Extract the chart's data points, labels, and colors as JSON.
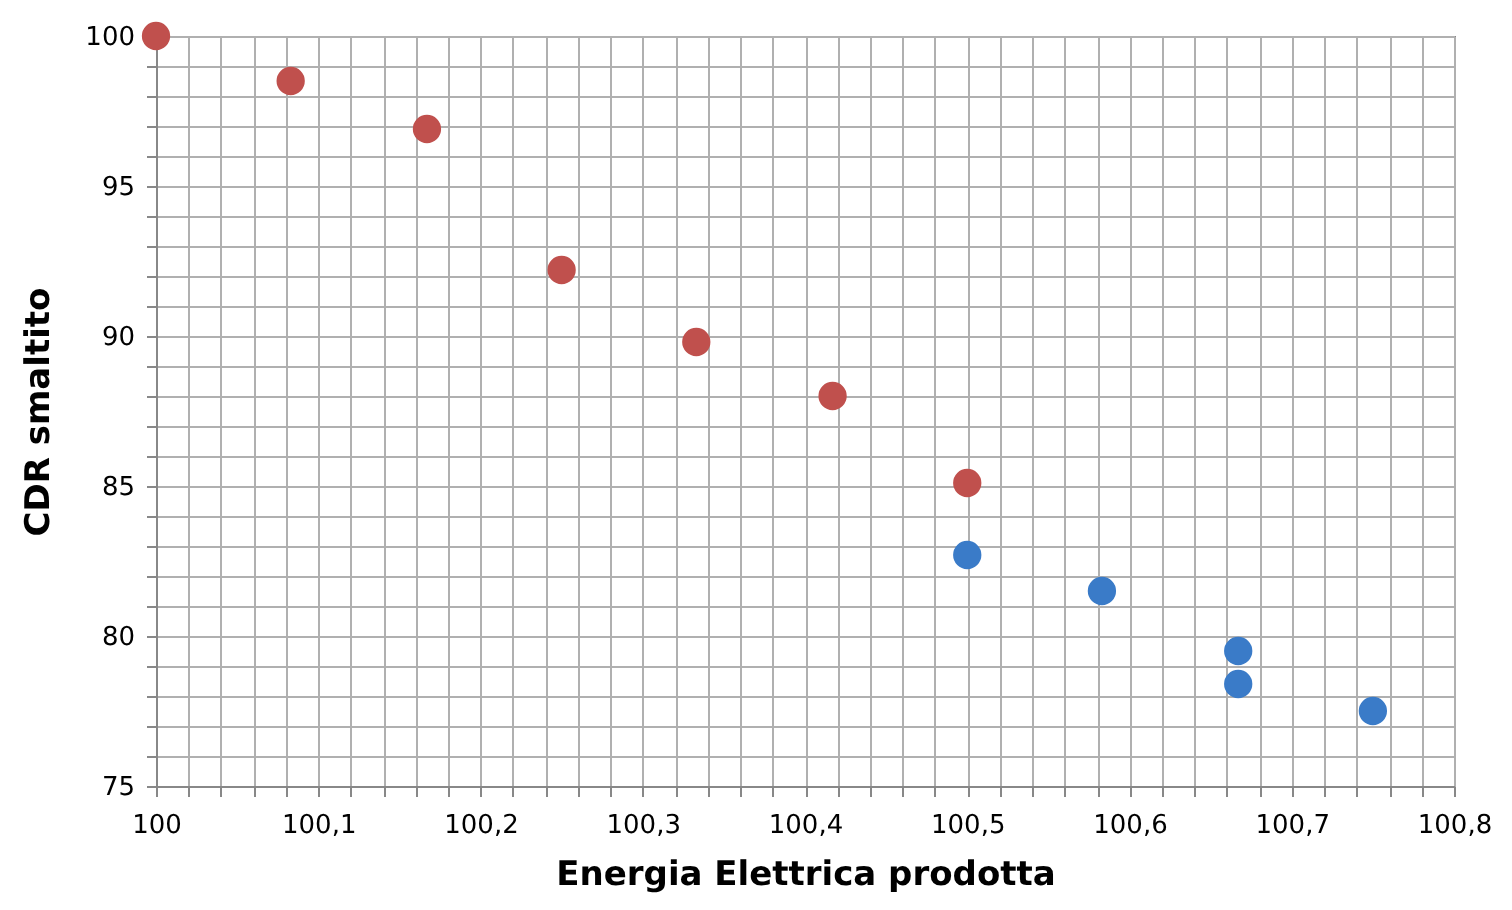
{
  "chart_data": {
    "type": "scatter",
    "xlabel": "Energia Elettrica prodotta",
    "ylabel": "CDR smaltito",
    "series": [
      {
        "color": "#c0504d",
        "x": [
          100,
          100.083,
          100.167,
          100.25,
          100.333,
          100.417,
          100.5
        ],
        "values": [
          100,
          98.5,
          96.9,
          92.2,
          89.8,
          88,
          85.1
        ]
      },
      {
        "color": "#3a7bc8",
        "x": [
          100.5,
          100.583,
          100.667,
          100.667,
          100.75
        ],
        "values": [
          82.7,
          81.5,
          79.5,
          78.4,
          77.5
        ]
      }
    ],
    "xlim": [
      100,
      100.8
    ],
    "xticks": [
      100,
      {
        "value": 100.02,
        "label": null
      },
      {
        "value": 100.04,
        "label": null
      },
      {
        "value": 100.06,
        "label": null
      },
      {
        "value": 100.08,
        "label": null
      },
      {
        "value": 100.1,
        "label": "100,1"
      },
      {
        "value": 100.12,
        "label": null
      },
      {
        "value": 100.14,
        "label": null
      },
      {
        "value": 100.16,
        "label": null
      },
      {
        "value": 100.18,
        "label": null
      },
      {
        "value": 100.2,
        "label": "100,2"
      },
      {
        "value": 100.22,
        "label": null
      },
      {
        "value": 100.24,
        "label": null
      },
      {
        "value": 100.26,
        "label": null
      },
      {
        "value": 100.28,
        "label": null
      },
      {
        "value": 100.3,
        "label": "100,3"
      },
      {
        "value": 100.32,
        "label": null
      },
      {
        "value": 100.34,
        "label": null
      },
      {
        "value": 100.36,
        "label": null
      },
      {
        "value": 100.38,
        "label": null
      },
      {
        "value": 100.4,
        "label": "100,4"
      },
      {
        "value": 100.42,
        "label": null
      },
      {
        "value": 100.44,
        "label": null
      },
      {
        "value": 100.46,
        "label": null
      },
      {
        "value": 100.48,
        "label": null
      },
      {
        "value": 100.5,
        "label": "100,5"
      },
      {
        "value": 100.52,
        "label": null
      },
      {
        "value": 100.54,
        "label": null
      },
      {
        "value": 100.56,
        "label": null
      },
      {
        "value": 100.58,
        "label": null
      },
      {
        "value": 100.6,
        "label": "100,6"
      },
      {
        "value": 100.62,
        "label": null
      },
      {
        "value": 100.64,
        "label": null
      },
      {
        "value": 100.66,
        "label": null
      },
      {
        "value": 100.68,
        "label": null
      },
      {
        "value": 100.7,
        "label": "100,7"
      },
      {
        "value": 100.72,
        "label": null
      },
      {
        "value": 100.74,
        "label": null
      },
      {
        "value": 100.76,
        "label": null
      },
      {
        "value": 100.78,
        "label": null
      },
      {
        "value": 100.8,
        "label": "100,8"
      }
    ],
    "ylim": [
      75,
      100
    ],
    "yticks": [
      75,
      {
        "value": 76,
        "label": null
      },
      {
        "value": 77,
        "label": null
      },
      {
        "value": 78,
        "label": null
      },
      {
        "value": 79,
        "label": null
      },
      80,
      {
        "value": 81,
        "label": null
      },
      {
        "value": 82,
        "label": null
      },
      {
        "value": 83,
        "label": null
      },
      {
        "value": 84,
        "label": null
      },
      85,
      {
        "value": 86,
        "label": null
      },
      {
        "value": 87,
        "label": null
      },
      {
        "value": 88,
        "label": null
      },
      {
        "value": 89,
        "label": null
      },
      90,
      {
        "value": 91,
        "label": null
      },
      {
        "value": 92,
        "label": null
      },
      {
        "value": 93,
        "label": null
      },
      {
        "value": 94,
        "label": null
      },
      95,
      {
        "value": 96,
        "label": null
      },
      {
        "value": 97,
        "label": null
      },
      {
        "value": 98,
        "label": null
      },
      {
        "value": 99,
        "label": null
      },
      100
    ],
    "grid": true,
    "marker": "circle"
  }
}
